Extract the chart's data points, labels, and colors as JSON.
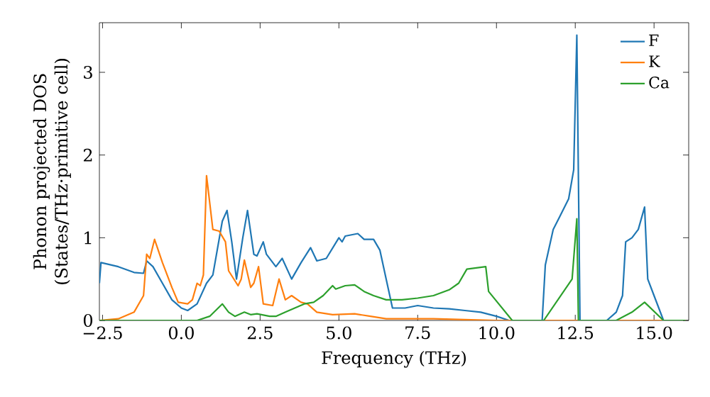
{
  "chart_data": {
    "type": "line",
    "xlabel": "Frequency (THz)",
    "ylabel": "Phonon projected DOS (States/THz·primitive cell)",
    "xlim": [
      -2.6,
      16.1
    ],
    "ylim": [
      0,
      3.6
    ],
    "xticks": [
      {
        "value": -2.5,
        "label": "−2.5"
      },
      {
        "value": 0,
        "label": "0.0"
      },
      {
        "value": 2.5,
        "label": "2.5"
      },
      {
        "value": 5,
        "label": "5.0"
      },
      {
        "value": 7.5,
        "label": "7.5"
      },
      {
        "value": 10,
        "label": "10.0"
      },
      {
        "value": 12.5,
        "label": "12.5"
      },
      {
        "value": 15,
        "label": "15.0"
      }
    ],
    "yticks": [
      0,
      1,
      2,
      3
    ],
    "legend": "top right",
    "grid": false,
    "marker": "none",
    "line_style": "solid",
    "series": [
      {
        "name": "F",
        "color": "#1f77b4",
        "x": [
          -2.6,
          -2.55,
          -2.0,
          -1.5,
          -1.2,
          -1.1,
          -0.9,
          -0.6,
          -0.3,
          0.0,
          0.2,
          0.5,
          0.8,
          1.0,
          1.3,
          1.45,
          1.6,
          1.75,
          1.95,
          2.1,
          2.3,
          2.4,
          2.6,
          2.7,
          3.0,
          3.2,
          3.5,
          3.8,
          4.1,
          4.3,
          4.6,
          5.0,
          5.1,
          5.2,
          5.6,
          5.8,
          6.1,
          6.3,
          6.5,
          6.7,
          7.1,
          7.5,
          8.0,
          8.5,
          9.0,
          9.5,
          10.0,
          10.4,
          11.45,
          11.55,
          11.8,
          12.0,
          12.29,
          12.45,
          12.55,
          12.65,
          13.5,
          13.8,
          14.0,
          14.1,
          14.3,
          14.5,
          14.7,
          14.8,
          15.0,
          15.3
        ],
        "values": [
          0.45,
          0.7,
          0.65,
          0.58,
          0.57,
          0.72,
          0.65,
          0.45,
          0.25,
          0.15,
          0.12,
          0.2,
          0.45,
          0.55,
          1.2,
          1.33,
          0.95,
          0.5,
          1.0,
          1.33,
          0.8,
          0.78,
          0.95,
          0.8,
          0.65,
          0.75,
          0.5,
          0.7,
          0.88,
          0.72,
          0.75,
          1.0,
          0.95,
          1.02,
          1.05,
          0.98,
          0.98,
          0.85,
          0.5,
          0.15,
          0.15,
          0.18,
          0.15,
          0.14,
          0.12,
          0.1,
          0.05,
          0,
          0,
          0.67,
          1.1,
          1.25,
          1.47,
          1.82,
          3.45,
          0,
          0,
          0.1,
          0.3,
          0.95,
          1.0,
          1.1,
          1.37,
          0.5,
          0.3,
          0
        ]
      },
      {
        "name": "K",
        "color": "#ff7f0e",
        "x": [
          -2.6,
          -2.0,
          -1.5,
          -1.2,
          -1.1,
          -1.0,
          -0.85,
          -0.6,
          -0.3,
          -0.1,
          0.2,
          0.35,
          0.5,
          0.6,
          0.7,
          0.8,
          1.0,
          1.2,
          1.4,
          1.5,
          1.8,
          1.9,
          2.0,
          2.2,
          2.3,
          2.45,
          2.6,
          2.9,
          3.1,
          3.3,
          3.5,
          3.8,
          4.0,
          4.3,
          4.8,
          5.5,
          6.0,
          6.5,
          8.0,
          9.0,
          10.0,
          16.0
        ],
        "values": [
          0,
          0.02,
          0.1,
          0.3,
          0.8,
          0.75,
          0.98,
          0.7,
          0.4,
          0.22,
          0.2,
          0.25,
          0.45,
          0.42,
          0.55,
          1.75,
          1.1,
          1.08,
          0.95,
          0.6,
          0.42,
          0.5,
          0.73,
          0.4,
          0.45,
          0.65,
          0.2,
          0.18,
          0.5,
          0.25,
          0.3,
          0.22,
          0.2,
          0.1,
          0.07,
          0.08,
          0.05,
          0.02,
          0.02,
          0.01,
          0,
          0
        ]
      },
      {
        "name": "Ca",
        "color": "#2ca02c",
        "x": [
          -2.6,
          0.5,
          0.9,
          1.3,
          1.5,
          1.7,
          2.0,
          2.2,
          2.4,
          2.8,
          3.0,
          3.3,
          3.6,
          3.9,
          4.2,
          4.5,
          4.8,
          4.9,
          5.2,
          5.5,
          5.8,
          6.1,
          6.5,
          7.0,
          7.5,
          8.0,
          8.5,
          8.8,
          9.06,
          9.66,
          9.75,
          10.5,
          11.5,
          12.4,
          12.55,
          12.6,
          13.8,
          14.3,
          14.7,
          15.3,
          16.0
        ],
        "values": [
          0,
          0,
          0.05,
          0.2,
          0.1,
          0.05,
          0.1,
          0.07,
          0.08,
          0.05,
          0.05,
          0.1,
          0.15,
          0.2,
          0.22,
          0.3,
          0.42,
          0.38,
          0.42,
          0.43,
          0.35,
          0.3,
          0.25,
          0.25,
          0.27,
          0.3,
          0.37,
          0.45,
          0.62,
          0.65,
          0.35,
          0,
          0,
          0.5,
          1.23,
          0,
          0,
          0.1,
          0.22,
          0,
          0
        ]
      }
    ]
  }
}
